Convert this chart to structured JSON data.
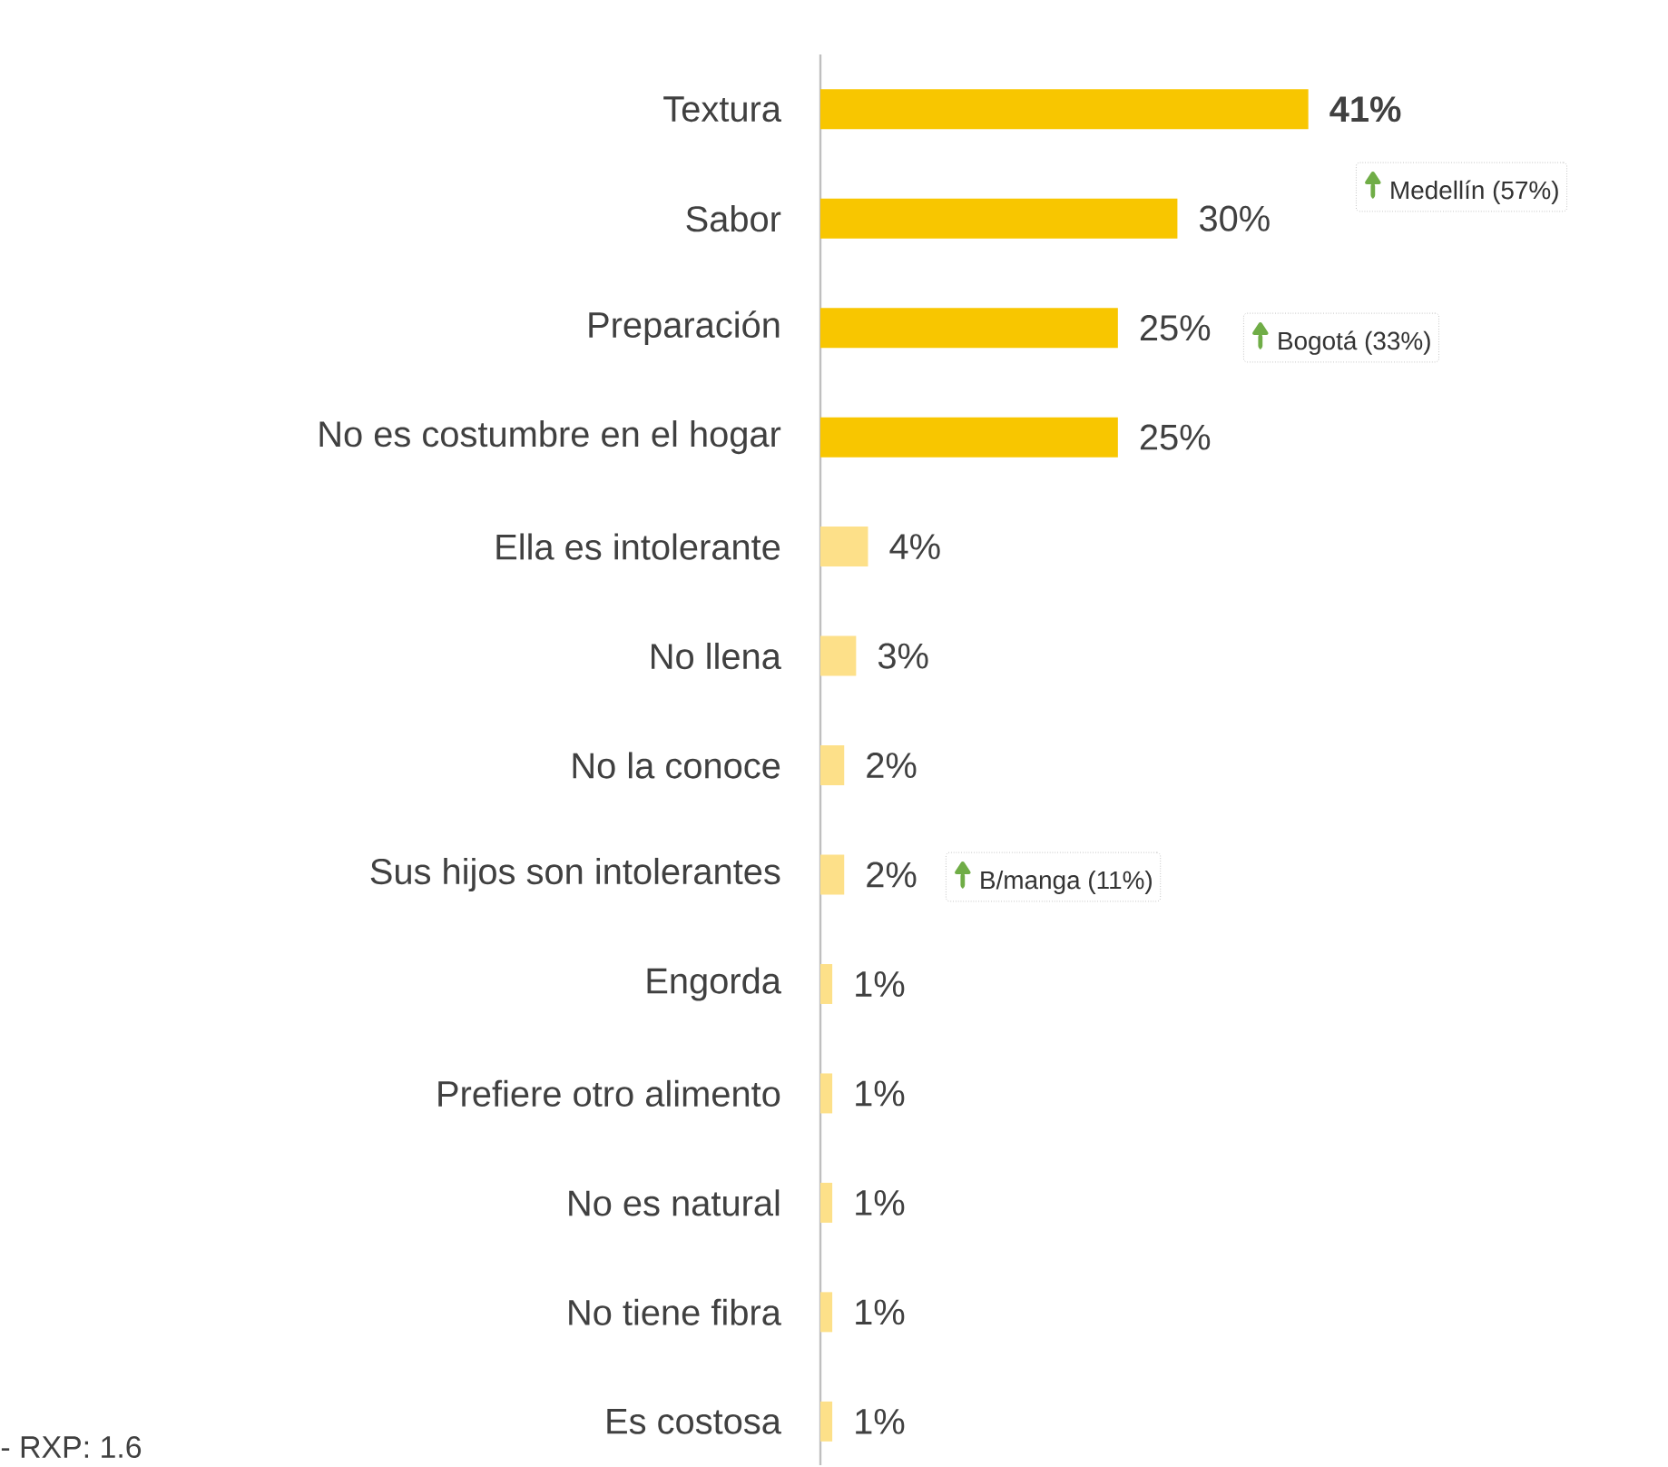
{
  "chart_data": {
    "type": "bar",
    "orientation": "horizontal",
    "categories": [
      "Textura",
      "Sabor",
      "Preparación",
      "No es costumbre en el hogar",
      "Ella es intolerante",
      "No llena",
      "No la conoce",
      "Sus hijos son intolerantes",
      "Engorda",
      "Prefiere otro alimento",
      "No es natural",
      "No tiene fibra",
      "Es costosa"
    ],
    "values": [
      41,
      30,
      25,
      25,
      4,
      3,
      2,
      2,
      1,
      1,
      1,
      1,
      1
    ],
    "value_labels": [
      "41%",
      "30%",
      "25%",
      "25%",
      "4%",
      "3%",
      "2%",
      "2%",
      "1%",
      "1%",
      "1%",
      "1%",
      "1%"
    ],
    "colors": [
      "#f8c600",
      "#f8c600",
      "#f8c600",
      "#f8c600",
      "#fde089",
      "#fde089",
      "#fde089",
      "#fde089",
      "#fde089",
      "#fde089",
      "#fde089",
      "#fde089",
      "#fde089"
    ],
    "annotations": [
      "Medellín (57%)",
      "Bogotá (33%)",
      "B/manga (11%)",
      "- RXP: 1.6"
    ]
  }
}
